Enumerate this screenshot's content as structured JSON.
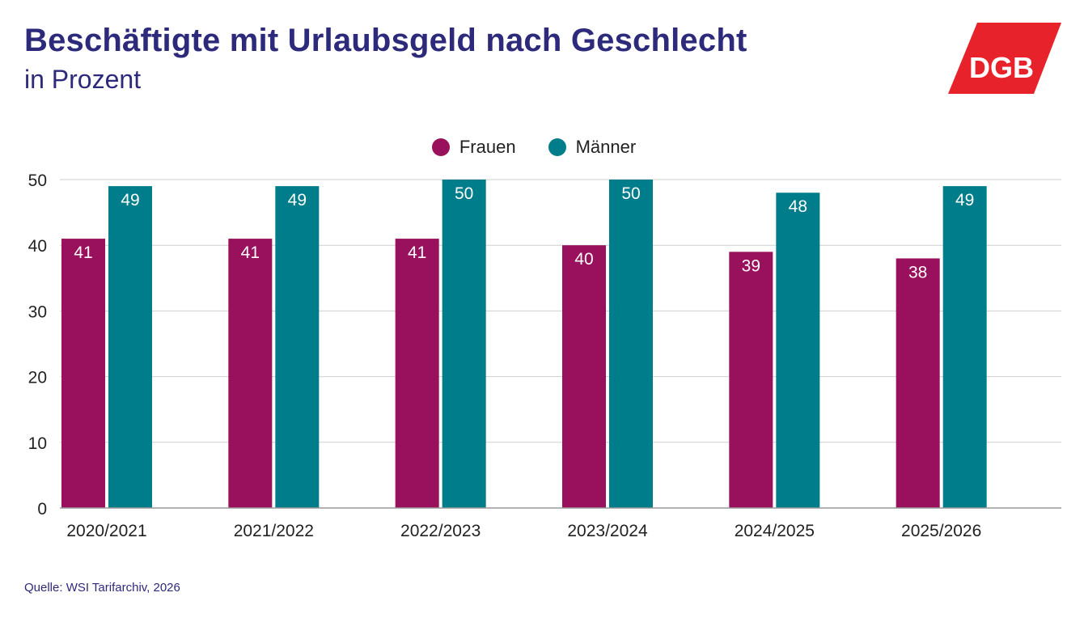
{
  "header": {
    "title": "Beschäftigte mit Urlaubsgeld nach Geschlecht",
    "subtitle": "in Prozent"
  },
  "logo": {
    "text": "DGB",
    "color": "#e8222a"
  },
  "source": "Quelle: WSI Tarifarchiv, 2026",
  "chart_data": {
    "type": "bar",
    "title": "Beschäftigte mit Urlaubsgeld nach Geschlecht",
    "subtitle": "in Prozent",
    "categories": [
      "2020/2021",
      "2021/2022",
      "2022/2023",
      "2023/2024",
      "2024/2025",
      "2025/2026"
    ],
    "series": [
      {
        "name": "Frauen",
        "color": "#99115c",
        "values": [
          41,
          41,
          41,
          40,
          39,
          38
        ]
      },
      {
        "name": "Männer",
        "color": "#007d8a",
        "values": [
          49,
          49,
          50,
          50,
          48,
          49
        ]
      }
    ],
    "ylim": [
      0,
      50
    ],
    "yticks": [
      0,
      10,
      20,
      30,
      40,
      50
    ],
    "grid": true,
    "legend": "top-center",
    "data_labels": true
  }
}
